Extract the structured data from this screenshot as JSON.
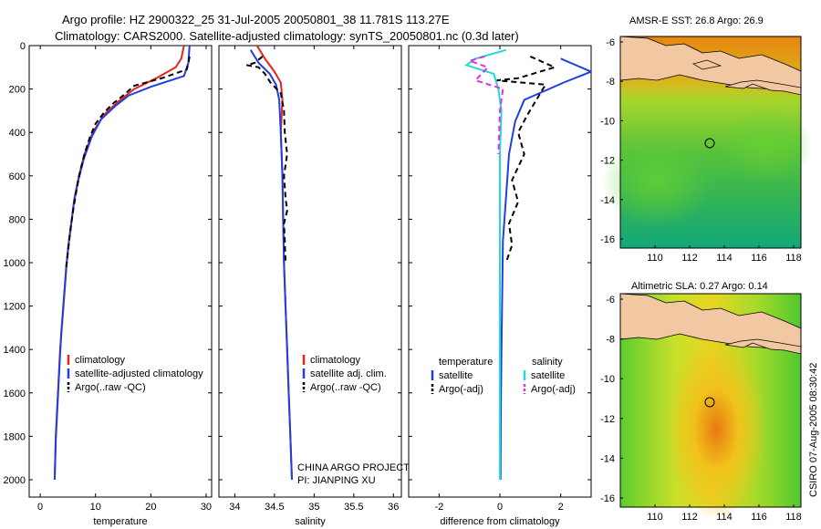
{
  "header": {
    "title_line1": "Argo profile: HZ 2900322_25 31-Jul-2005 20050801_38 11.781S 113.27E",
    "title_line2": "Climatology: CARS2000. Satellite-adjusted climatology: synTS_20050801.nc (0.3d later)"
  },
  "colors": {
    "clim": "#e8231c",
    "sat": "#1f3fe0",
    "argo": "#000000",
    "sat_diff": "#22d8d8",
    "argo_diff": "#e62ee0",
    "land": "#f2c8a2"
  },
  "chart_data": [
    {
      "type": "line",
      "id": "temperature",
      "xlabel": "temperature",
      "ylabel": "",
      "xlim": [
        -2,
        31
      ],
      "ylim": [
        2080,
        0
      ],
      "xticks": [
        0,
        10,
        20,
        30
      ],
      "yticks": [
        0,
        200,
        400,
        600,
        800,
        1000,
        1200,
        1400,
        1600,
        1800,
        2000
      ],
      "series": [
        {
          "name": "climatology",
          "color": "#e8231c",
          "dash": "",
          "points": [
            [
              26,
              0
            ],
            [
              25.5,
              60
            ],
            [
              24.5,
              100
            ],
            [
              21,
              150
            ],
            [
              17,
              200
            ],
            [
              14,
              260
            ],
            [
              11.5,
              320
            ],
            [
              9.5,
              400
            ],
            [
              8,
              500
            ],
            [
              7,
              600
            ],
            [
              6.2,
              700
            ],
            [
              5.7,
              800
            ],
            [
              5.2,
              900
            ],
            [
              4.8,
              1000
            ],
            [
              4.5,
              1100
            ],
            [
              4.2,
              1200
            ],
            [
              3.9,
              1300
            ],
            [
              3.6,
              1400
            ],
            [
              3.4,
              1500
            ],
            [
              3.2,
              1600
            ],
            [
              3,
              1700
            ],
            [
              2.8,
              1800
            ],
            [
              2.7,
              1900
            ],
            [
              2.6,
              2000
            ]
          ]
        },
        {
          "name": "satellite-adjusted climatology",
          "color": "#1f3fe0",
          "dash": "",
          "points": [
            [
              27,
              0
            ],
            [
              26.8,
              80
            ],
            [
              26,
              140
            ],
            [
              20,
              190
            ],
            [
              16,
              230
            ],
            [
              13.5,
              280
            ],
            [
              11,
              340
            ],
            [
              9.3,
              420
            ],
            [
              7.9,
              520
            ],
            [
              6.9,
              620
            ],
            [
              6.1,
              720
            ],
            [
              5.6,
              820
            ],
            [
              5.1,
              920
            ],
            [
              4.7,
              1020
            ],
            [
              4.4,
              1120
            ],
            [
              4.1,
              1220
            ],
            [
              3.8,
              1320
            ],
            [
              3.6,
              1420
            ],
            [
              3.4,
              1520
            ],
            [
              3.2,
              1620
            ],
            [
              3,
              1720
            ],
            [
              2.8,
              1820
            ],
            [
              2.7,
              1920
            ],
            [
              2.6,
              2000
            ]
          ]
        },
        {
          "name": "Argo(..raw -QC)",
          "color": "#000000",
          "dash": "6,4",
          "points": [
            [
              27,
              50
            ],
            [
              26.8,
              80
            ],
            [
              26.5,
              110
            ],
            [
              22,
              150
            ],
            [
              17,
              185
            ],
            [
              15,
              230
            ],
            [
              13,
              270
            ],
            [
              11.5,
              310
            ],
            [
              10,
              360
            ],
            [
              9,
              420
            ],
            [
              8,
              500
            ],
            [
              7.2,
              580
            ],
            [
              6.6,
              660
            ],
            [
              6,
              750
            ],
            [
              5.5,
              840
            ],
            [
              5.1,
              930
            ],
            [
              4.7,
              1020
            ]
          ]
        }
      ],
      "legend": [
        "climatology",
        "satellite-adjusted climatology",
        "Argo(..raw -QC)"
      ]
    },
    {
      "type": "line",
      "id": "salinity",
      "xlabel": "salinity",
      "ylabel": "",
      "xlim": [
        33.8,
        36.1
      ],
      "ylim": [
        2080,
        0
      ],
      "xticks": [
        34,
        34.5,
        35,
        35.5,
        36
      ],
      "yticks": [],
      "series": [
        {
          "name": "climatology",
          "color": "#e8231c",
          "dash": "",
          "points": [
            [
              34.28,
              0
            ],
            [
              34.38,
              60
            ],
            [
              34.5,
              120
            ],
            [
              34.58,
              170
            ],
            [
              34.6,
              250
            ],
            [
              34.58,
              400
            ],
            [
              34.6,
              600
            ],
            [
              34.61,
              800
            ],
            [
              34.62,
              1000
            ],
            [
              34.64,
              1200
            ],
            [
              34.66,
              1400
            ],
            [
              34.68,
              1600
            ],
            [
              34.7,
              1800
            ],
            [
              34.72,
              2000
            ]
          ]
        },
        {
          "name": "satellite adj. clim.",
          "color": "#1f3fe0",
          "dash": "",
          "points": [
            [
              34.2,
              20
            ],
            [
              34.3,
              80
            ],
            [
              34.44,
              130
            ],
            [
              34.52,
              180
            ],
            [
              34.56,
              250
            ],
            [
              34.58,
              400
            ],
            [
              34.6,
              600
            ],
            [
              34.61,
              800
            ],
            [
              34.62,
              1000
            ],
            [
              34.64,
              1200
            ],
            [
              34.66,
              1400
            ],
            [
              34.68,
              1600
            ],
            [
              34.7,
              1800
            ],
            [
              34.72,
              2000
            ]
          ]
        },
        {
          "name": "Argo(..raw -QC)",
          "color": "#000000",
          "dash": "6,4",
          "points": [
            [
              34.35,
              50
            ],
            [
              34.25,
              80
            ],
            [
              34.15,
              90
            ],
            [
              34.3,
              100
            ],
            [
              34.38,
              130
            ],
            [
              34.45,
              170
            ],
            [
              34.58,
              220
            ],
            [
              34.62,
              300
            ],
            [
              34.63,
              400
            ],
            [
              34.66,
              500
            ],
            [
              34.62,
              600
            ],
            [
              34.64,
              700
            ],
            [
              34.66,
              760
            ],
            [
              34.62,
              820
            ],
            [
              34.63,
              900
            ],
            [
              34.64,
              1000
            ]
          ]
        }
      ],
      "legend": [
        "climatology",
        "satellite adj. clim.",
        "Argo(..raw -QC)"
      ],
      "annotations": [
        "CHINA ARGO PROJECT",
        "PI: JIANPING XU"
      ]
    },
    {
      "type": "line",
      "id": "difference",
      "xlabel": "difference from climatology",
      "ylabel": "",
      "xlim": [
        -3,
        3
      ],
      "ylim": [
        2080,
        0
      ],
      "xticks": [
        -2,
        0,
        2
      ],
      "yticks": [],
      "series": [
        {
          "name": "temperature satellite",
          "color": "#1f3fe0",
          "dash": "",
          "points": [
            [
              2,
              60
            ],
            [
              3,
              120
            ],
            [
              2.1,
              170
            ],
            [
              0.8,
              250
            ],
            [
              0.5,
              350
            ],
            [
              0.3,
              500
            ],
            [
              0.2,
              700
            ],
            [
              0.1,
              900
            ],
            [
              0.08,
              1100
            ],
            [
              0.05,
              1400
            ],
            [
              0.03,
              1700
            ],
            [
              0.02,
              2000
            ]
          ]
        },
        {
          "name": "temperature Argo(-adj)",
          "color": "#000000",
          "dash": "6,4",
          "points": [
            [
              1,
              50
            ],
            [
              1.8,
              100
            ],
            [
              0.6,
              150
            ],
            [
              -0.1,
              160
            ],
            [
              1.5,
              180
            ],
            [
              1.2,
              250
            ],
            [
              0.9,
              320
            ],
            [
              0.6,
              400
            ],
            [
              0.8,
              500
            ],
            [
              0.4,
              620
            ],
            [
              0.6,
              720
            ],
            [
              0.3,
              820
            ],
            [
              0.4,
              920
            ],
            [
              0.2,
              1000
            ]
          ]
        },
        {
          "name": "salinity satellite",
          "color": "#22d8d8",
          "dash": "",
          "points": [
            [
              0.2,
              20
            ],
            [
              -0.8,
              60
            ],
            [
              -1.1,
              90
            ],
            [
              -0.2,
              130
            ],
            [
              -0.05,
              200
            ],
            [
              0.05,
              300
            ],
            [
              0,
              500
            ],
            [
              0,
              800
            ],
            [
              0,
              1100
            ],
            [
              0,
              1500
            ],
            [
              0,
              2000
            ]
          ]
        },
        {
          "name": "salinity Argo(-adj)",
          "color": "#e62ee0",
          "dash": "6,4",
          "points": [
            [
              -0.5,
              50
            ],
            [
              -1,
              70
            ],
            [
              -0.4,
              100
            ],
            [
              -0.8,
              160
            ],
            [
              0.1,
              200
            ],
            [
              0,
              300
            ],
            [
              -0.05,
              500
            ]
          ]
        }
      ],
      "legend_titles": [
        "temperature",
        "salinity"
      ],
      "legend": [
        "satellite",
        "Argo(-adj)",
        "satellite",
        "Argo(-adj)"
      ]
    }
  ],
  "maps": [
    {
      "title": "AMSR-E SST: 26.8  Argo: 26.9",
      "yticks": [
        "-6",
        "-8",
        "-10",
        "-12",
        "-14",
        "-16"
      ],
      "xticks": [
        "110",
        "112",
        "114",
        "116",
        "118"
      ]
    },
    {
      "title": "Altimetric SLA: 0.27  Argo: 0.14",
      "yticks": [
        "-6",
        "-8",
        "-10",
        "-12",
        "-14",
        "-16"
      ],
      "xticks": [
        "110",
        "112",
        "114",
        "116",
        "118"
      ]
    }
  ],
  "footer": {
    "stamp": "CSIRO 07-Aug-2005 08:30:42"
  }
}
